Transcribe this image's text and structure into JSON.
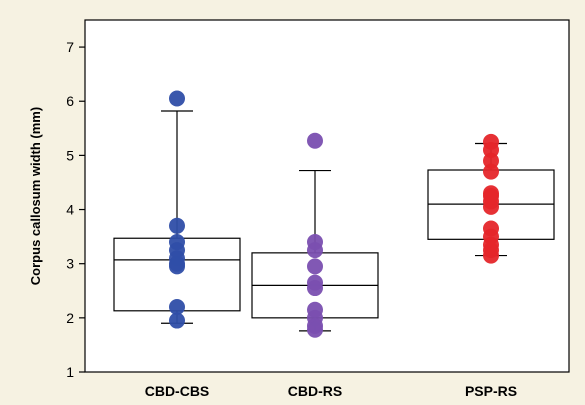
{
  "chart_data": {
    "type": "box",
    "ylabel": "Corpus callosum width (mm)",
    "ylim": [
      1,
      7.5
    ],
    "yticks": [
      1,
      2,
      3,
      4,
      5,
      6,
      7
    ],
    "categories": [
      "CBD-CBS",
      "CBD-RS",
      "PSP-RS"
    ],
    "groups": [
      {
        "name": "CBD-CBS",
        "color": "#2f4ea8",
        "box": {
          "whisker_low": 1.9,
          "q1": 2.13,
          "median": 3.07,
          "q3": 3.47,
          "whisker_high": 5.82
        },
        "points": [
          6.05,
          3.7,
          3.4,
          3.25,
          3.1,
          3.0,
          2.95,
          2.2,
          1.95
        ]
      },
      {
        "name": "CBD-RS",
        "color": "#7a4fb0",
        "box": {
          "whisker_low": 1.76,
          "q1": 2.0,
          "median": 2.6,
          "q3": 3.2,
          "whisker_high": 4.72
        },
        "points": [
          5.27,
          3.4,
          3.25,
          2.95,
          2.65,
          2.55,
          2.15,
          2.0,
          1.85,
          1.78
        ]
      },
      {
        "name": "PSP-RS",
        "color": "#e5262a",
        "box": {
          "whisker_low": 3.15,
          "q1": 3.45,
          "median": 4.1,
          "q3": 4.73,
          "whisker_high": 5.22
        },
        "points": [
          5.25,
          5.1,
          4.9,
          4.7,
          4.3,
          4.25,
          4.15,
          4.05,
          3.65,
          3.5,
          3.35,
          3.25,
          3.15
        ]
      }
    ]
  }
}
